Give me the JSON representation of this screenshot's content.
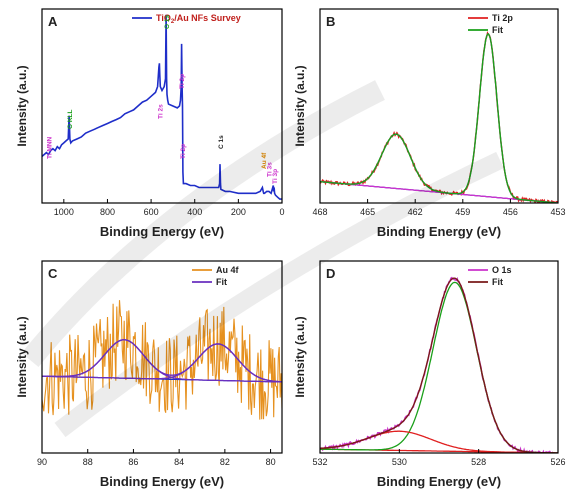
{
  "chart_data": [
    {
      "panel": "A",
      "type": "line",
      "xlabel": "Binding Energy (eV)",
      "ylabel": "Intensity (a.u.)",
      "xlim": [
        1100,
        0
      ],
      "ylim": [
        0,
        100
      ],
      "x_ticks": [
        "1000",
        "800",
        "600",
        "400",
        "200",
        "0"
      ],
      "x_tick_values": [
        1000,
        800,
        600,
        400,
        200,
        0
      ],
      "legend": [
        "TiO2/Au NFs Survey"
      ],
      "legend_position": "top-right",
      "series": [
        {
          "name": "TiO2/Au NFs Survey",
          "color": "#1f2ec9",
          "x": [
            1100,
            1090,
            1080,
            1070,
            1060,
            1050,
            1040,
            1030,
            1020,
            1010,
            1000,
            990,
            980,
            976,
            972,
            968,
            960,
            940,
            920,
            900,
            880,
            860,
            840,
            820,
            800,
            780,
            760,
            740,
            720,
            700,
            680,
            660,
            640,
            620,
            600,
            580,
            570,
            564,
            562,
            560,
            558,
            550,
            540,
            534,
            531,
            529,
            527,
            524,
            520,
            500,
            480,
            470,
            465,
            462,
            460,
            458,
            456,
            454,
            452,
            440,
            420,
            400,
            380,
            360,
            340,
            320,
            300,
            290,
            286,
            284,
            282,
            280,
            260,
            240,
            200,
            160,
            120,
            100,
            90,
            86,
            84,
            80,
            70,
            60,
            50,
            40,
            38,
            36,
            34,
            30,
            20,
            10,
            0
          ],
          "y": [
            24,
            25,
            26,
            25,
            27,
            28,
            27,
            29,
            28,
            30,
            31,
            32,
            33,
            45,
            33,
            31,
            32,
            33,
            34,
            36,
            37,
            38,
            39,
            40,
            41,
            42,
            43,
            44,
            46,
            47,
            48,
            50,
            52,
            53,
            55,
            57,
            60,
            70,
            72,
            66,
            60,
            58,
            60,
            64,
            97,
            64,
            56,
            53,
            51,
            50,
            49,
            50,
            53,
            60,
            82,
            60,
            50,
            16,
            10,
            10,
            9,
            9,
            8,
            8,
            8,
            8,
            8,
            8,
            10,
            20,
            10,
            7,
            6,
            6,
            5,
            5,
            5,
            6,
            8,
            6,
            5,
            5,
            6,
            6,
            5,
            9,
            6,
            8,
            5,
            4,
            3,
            2,
            2
          ]
        }
      ],
      "annotations": [
        {
          "label": "Ti MNN",
          "x": 1070,
          "color": "#cc33cc"
        },
        {
          "label": "O KLL",
          "x": 976,
          "color": "#1aa01a"
        },
        {
          "label": "Ti 2s",
          "x": 562,
          "color": "#cc33cc"
        },
        {
          "label": "O 1s",
          "x": 531,
          "color": "#1aa01a"
        },
        {
          "label": "Ti 2p",
          "x": 458,
          "color": "#cc33cc"
        },
        {
          "label": "Ti 2p",
          "x": 462,
          "color": "#cc33cc"
        },
        {
          "label": "C 1s",
          "x": 284,
          "color": "#222222"
        },
        {
          "label": "Au 4f",
          "x": 86,
          "color": "#e08a00"
        },
        {
          "label": "Ti 3s",
          "x": 62,
          "color": "#cc33cc"
        },
        {
          "label": "Ti 3p",
          "x": 36,
          "color": "#cc33cc"
        }
      ]
    },
    {
      "panel": "B",
      "type": "line",
      "xlabel": "Binding Energy (eV)",
      "ylabel": "Intensity (a.u.)",
      "xlim": [
        468,
        453
      ],
      "ylim": [
        0,
        100
      ],
      "x_ticks": [
        "468",
        "465",
        "462",
        "459",
        "456",
        "453"
      ],
      "x_tick_values": [
        468,
        465,
        462,
        459,
        456,
        453
      ],
      "legend": [
        "Ti 2p",
        "Fit"
      ],
      "legend_position": "top-right",
      "components": [
        {
          "name": "baseline",
          "color": "#1f2ec9",
          "type": "linear",
          "y_at_xmin": 11,
          "y_at_xmax": 0
        },
        {
          "name": "Ti 2p3/2 peak",
          "color": "#cc33cc",
          "center": 457.4,
          "height": 84,
          "sigma": 0.55
        },
        {
          "name": "Ti 2p1/2 peak",
          "color": "#cc33cc",
          "center": 463.2,
          "height": 28,
          "sigma": 0.9
        }
      ],
      "series": [
        {
          "name": "Ti 2p",
          "color": "#e02020",
          "noise": 1.0
        },
        {
          "name": "Fit",
          "color": "#1aa01a"
        }
      ]
    },
    {
      "panel": "C",
      "type": "line",
      "xlabel": "Binding Energy (eV)",
      "ylabel": "Intensity (a.u.)",
      "xlim": [
        90,
        79.5
      ],
      "ylim": [
        0,
        100
      ],
      "x_ticks": [
        "90",
        "88",
        "86",
        "84",
        "82",
        "80"
      ],
      "x_tick_values": [
        90,
        88,
        86,
        84,
        82,
        80
      ],
      "legend": [
        "Au 4f",
        "Fit"
      ],
      "legend_position": "top-right",
      "components": [
        {
          "name": "baseline",
          "color": "#1f2ec9",
          "type": "linear",
          "y_at_xmin": 40,
          "y_at_xmax": 37
        },
        {
          "name": "Au 4f5/2 peak",
          "color": "#6a2fbf",
          "center": 86.4,
          "height": 20,
          "sigma": 0.85
        },
        {
          "name": "Au 4f7/2 peak",
          "color": "#6a2fbf",
          "center": 82.3,
          "height": 19,
          "sigma": 0.85
        }
      ],
      "series": [
        {
          "name": "Au 4f",
          "color": "#e6911f",
          "noise": 22
        },
        {
          "name": "Fit",
          "color": "#6a2fbf"
        }
      ]
    },
    {
      "panel": "D",
      "type": "line",
      "xlabel": "Binding Energy (eV)",
      "ylabel": "Intensity (a.u.)",
      "xlim": [
        532,
        526
      ],
      "ylim": [
        0,
        100
      ],
      "x_ticks": [
        "532",
        "530",
        "528",
        "526"
      ],
      "x_tick_values": [
        532,
        530,
        528,
        526
      ],
      "legend": [
        "O 1s",
        "Fit"
      ],
      "legend_position": "top-right",
      "components": [
        {
          "name": "baseline",
          "color": "#e02020",
          "type": "linear",
          "y_at_xmin": 2,
          "y_at_xmax": 0
        },
        {
          "name": "lattice oxygen peak",
          "color": "#1aa01a",
          "center": 528.6,
          "height": 88,
          "sigma": 0.55
        },
        {
          "name": "surface OH peak",
          "color": "#e02020",
          "center": 530.0,
          "height": 10,
          "sigma": 0.8
        }
      ],
      "series": [
        {
          "name": "O 1s",
          "color": "#cc33cc",
          "noise": 1.0
        },
        {
          "name": "Fit",
          "color": "#7a1a1a"
        }
      ]
    }
  ]
}
